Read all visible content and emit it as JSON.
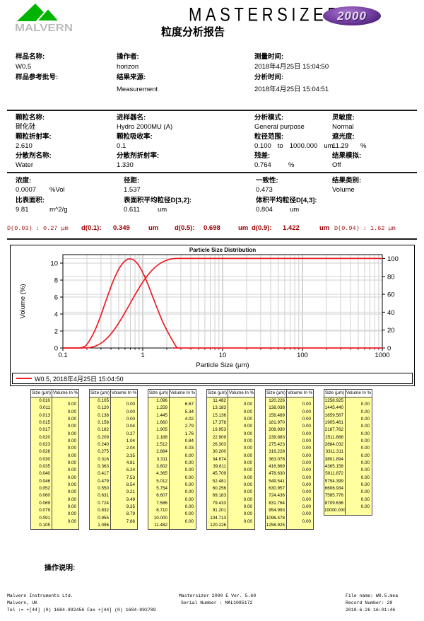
{
  "header": {
    "logo_text": "MALVERN",
    "title": "MASTERSIZER",
    "badge": "2000",
    "subtitle": "粒度分析报告"
  },
  "sample": {
    "name_label": "样品名称:",
    "name": "W0.5",
    "batch_label": "样品参考批号:",
    "batch": "",
    "operator_label": "操作者:",
    "operator": "horizon",
    "source_label": "结果来源:",
    "source": "Measurement",
    "measured_label": "测量时间:",
    "measured": "2018年4月25日 15:04:50",
    "analysed_label": "分析时间:",
    "analysed": "2018年4月25日 15:04:51"
  },
  "particle": {
    "name_label": "颗粒名称:",
    "name": "碳化硅",
    "accessory_label": "进样器名:",
    "accessory": "Hydro 2000MU (A)",
    "analysis_model_label": "分析模式:",
    "analysis_model": "General purpose",
    "sensitivity_label": "灵敏度:",
    "sensitivity": "Normal",
    "ri_label": "颗粒折射率:",
    "ri": "2.610",
    "absorption_label": "颗粒吸收率:",
    "absorption": "0.1",
    "size_range_label": "粒径范围:",
    "size_range_from": "0.100",
    "size_range_word": "to",
    "size_range_to": "1000.000",
    "size_range_unit": "um",
    "obscuration_label": "遮光度:",
    "obscuration": "11.29",
    "obscuration_unit": "%",
    "dispersant_label": "分散剂名称:",
    "dispersant": "Water",
    "dispersant_ri_label": "分散剂折射率:",
    "dispersant_ri": "1.330",
    "residual_label": "残差:",
    "residual": "0.764",
    "residual_unit": "%",
    "emulation_label": "结果模拟:",
    "emulation": "Off"
  },
  "results": {
    "concentration_label": "浓度:",
    "concentration": "0.0007",
    "concentration_unit": "%Vol",
    "span_label": "径距:",
    "span": "1.537",
    "uniformity_label": "一致性:",
    "uniformity": "0.473",
    "result_type_label": "结果类别:",
    "result_type": "Volume",
    "ssa_label": "比表面积:",
    "ssa": "9.81",
    "ssa_unit": "m^2/g",
    "d32_label": "表面积平均粒径D[3,2]:",
    "d32": "0.611",
    "d32_unit": "um",
    "d43_label": "体积平均粒径D[4,3]:",
    "d43": "0.804",
    "d43_unit": "um"
  },
  "dvalues": {
    "d003": "D(0.03) : 0.27 μm",
    "d01_label": "d(0.1):",
    "d01": "0.349",
    "d01_unit": "um",
    "d05_label": "d(0.5):",
    "d05": "0.698",
    "d05_unit": "um",
    "d09_label": "d(0.9):",
    "d09": "1.422",
    "d09_unit": "um",
    "d094": "D(0.94) : 1.62 μm"
  },
  "chart_data": {
    "type": "line",
    "title": "Particle Size Distribution",
    "xlabel": "Particle Size (µm)",
    "ylabel": "Volume (%)",
    "x_scale": "log",
    "xlim": [
      0.1,
      1000
    ],
    "ylim_left": [
      0,
      11
    ],
    "ylim_right": [
      0,
      104.3
    ],
    "x_ticks": [
      0.1,
      1,
      10,
      100,
      1000
    ],
    "y_ticks_left": [
      0,
      2,
      4,
      6,
      8,
      10
    ],
    "y_ticks_right": [
      0,
      20,
      40,
      60,
      80,
      100
    ],
    "grid": true,
    "legend": "W0.5, 2018年4月25日 15:04:50",
    "legend_position": "bottom",
    "line_color": "#ed1c24",
    "series": [
      {
        "name": "volume-frequency",
        "axis": "left",
        "points": [
          [
            0.1,
            0
          ],
          [
            0.158,
            0
          ],
          [
            0.17,
            0.04
          ],
          [
            0.195,
            0.27
          ],
          [
            0.224,
            1.04
          ],
          [
            0.257,
            2.04
          ],
          [
            0.295,
            3.35
          ],
          [
            0.339,
            4.81
          ],
          [
            0.389,
            6.24
          ],
          [
            0.447,
            7.53
          ],
          [
            0.513,
            8.54
          ],
          [
            0.589,
            9.21
          ],
          [
            0.676,
            9.49
          ],
          [
            0.776,
            9.35
          ],
          [
            0.891,
            8.79
          ],
          [
            1.023,
            7.86
          ],
          [
            1.175,
            6.67
          ],
          [
            1.349,
            5.34
          ],
          [
            1.549,
            4.02
          ],
          [
            1.778,
            2.79
          ],
          [
            2.042,
            1.76
          ],
          [
            2.344,
            0.84
          ],
          [
            2.692,
            0.03
          ],
          [
            2.95,
            0
          ],
          [
            4,
            0
          ],
          [
            1000,
            0
          ]
        ]
      },
      {
        "name": "cumulative-volume",
        "axis": "right",
        "points": [
          [
            0.1,
            0
          ],
          [
            0.158,
            0
          ],
          [
            0.182,
            0.04
          ],
          [
            0.209,
            0.31
          ],
          [
            0.24,
            1.35
          ],
          [
            0.275,
            3.39
          ],
          [
            0.316,
            6.74
          ],
          [
            0.363,
            11.55
          ],
          [
            0.417,
            17.79
          ],
          [
            0.479,
            25.32
          ],
          [
            0.55,
            33.86
          ],
          [
            0.631,
            43.07
          ],
          [
            0.724,
            52.56
          ],
          [
            0.832,
            61.91
          ],
          [
            0.955,
            70.7
          ],
          [
            1.096,
            78.56
          ],
          [
            1.259,
            85.23
          ],
          [
            1.445,
            90.57
          ],
          [
            1.66,
            94.59
          ],
          [
            1.905,
            97.38
          ],
          [
            2.188,
            99.14
          ],
          [
            2.512,
            99.98
          ],
          [
            2.884,
            100
          ],
          [
            4,
            100
          ],
          [
            10,
            100
          ],
          [
            1000,
            100
          ]
        ]
      }
    ]
  },
  "table": {
    "headers": [
      "Size (µm)",
      "Volume In %"
    ],
    "groups": [
      {
        "sizes": [
          "0.010",
          "0.011",
          "0.013",
          "0.015",
          "0.017",
          "0.020",
          "0.023",
          "0.026",
          "0.030",
          "0.035",
          "0.040",
          "0.046",
          "0.052",
          "0.060",
          "0.069",
          "0.079",
          "0.091",
          "0.105"
        ],
        "volumes": [
          "0.00",
          "0.00",
          "0.00",
          "0.00",
          "0.00",
          "0.00",
          "0.00",
          "0.00",
          "0.00",
          "0.00",
          "0.00",
          "0.00",
          "0.00",
          "0.00",
          "0.00",
          "0.00",
          "0.00"
        ]
      },
      {
        "sizes": [
          "0.105",
          "0.120",
          "0.138",
          "0.158",
          "0.182",
          "0.209",
          "0.240",
          "0.275",
          "0.316",
          "0.363",
          "0.417",
          "0.479",
          "0.550",
          "0.631",
          "0.724",
          "0.832",
          "0.955",
          "1.096"
        ],
        "volumes": [
          "0.00",
          "0.00",
          "0.00",
          "0.04",
          "0.27",
          "1.04",
          "2.04",
          "3.35",
          "4.81",
          "6.24",
          "7.53",
          "8.54",
          "9.21",
          "9.49",
          "9.35",
          "8.79",
          "7.86"
        ]
      },
      {
        "sizes": [
          "1.096",
          "1.259",
          "1.445",
          "1.660",
          "1.905",
          "2.188",
          "2.512",
          "2.884",
          "3.311",
          "3.802",
          "4.365",
          "5.012",
          "5.754",
          "6.607",
          "7.586",
          "8.710",
          "10.000",
          "11.482"
        ],
        "volumes": [
          "6.67",
          "5.34",
          "4.02",
          "2.79",
          "1.76",
          "0.84",
          "0.03",
          "0.00",
          "0.00",
          "0.00",
          "0.00",
          "0.00",
          "0.00",
          "0.00",
          "0.00",
          "0.00",
          "0.00"
        ]
      },
      {
        "sizes": [
          "11.482",
          "13.183",
          "15.136",
          "17.378",
          "19.953",
          "22.909",
          "26.303",
          "30.200",
          "34.674",
          "39.811",
          "45.709",
          "52.481",
          "60.256",
          "69.183",
          "79.433",
          "91.201",
          "104.713",
          "120.226"
        ],
        "volumes": [
          "0.00",
          "0.00",
          "0.00",
          "0.00",
          "0.00",
          "0.00",
          "0.00",
          "0.00",
          "0.00",
          "0.00",
          "0.00",
          "0.00",
          "0.00",
          "0.00",
          "0.00",
          "0.00",
          "0.00"
        ]
      },
      {
        "sizes": [
          "120.226",
          "138.038",
          "158.489",
          "181.970",
          "208.930",
          "239.883",
          "275.423",
          "316.228",
          "363.078",
          "416.869",
          "478.630",
          "549.541",
          "630.957",
          "724.436",
          "831.764",
          "954.993",
          "1096.478",
          "1258.925"
        ],
        "volumes": [
          "0.00",
          "0.00",
          "0.00",
          "0.00",
          "0.00",
          "0.00",
          "0.00",
          "0.00",
          "0.00",
          "0.00",
          "0.00",
          "0.00",
          "0.00",
          "0.00",
          "0.00",
          "0.00",
          "0.00"
        ]
      },
      {
        "sizes": [
          "1258.925",
          "1445.440",
          "1659.587",
          "1905.461",
          "2187.762",
          "2511.886",
          "2884.032",
          "3311.311",
          "3801.894",
          "4365.158",
          "5011.872",
          "5754.399",
          "6606.934",
          "7585.776",
          "8709.636",
          "10000.000"
        ],
        "volumes": [
          "0.00",
          "0.00",
          "0.00",
          "0.00",
          "0.00",
          "0.00",
          "0.00",
          "0.00",
          "0.00",
          "0.00",
          "0.00",
          "0.00",
          "0.00",
          "0.00",
          "0.00"
        ]
      }
    ]
  },
  "operation_label": "操作说明:",
  "footer": {
    "left": [
      "Malvern Instruments Ltd.",
      "Malvern, UK",
      "Tel := +[44] (0) 1684-892456 Fax +[44] (0) 1684-892789"
    ],
    "center": [
      "Mastersizer 2000 E Ver. 5.60",
      "Serial Number : MAL1085172"
    ],
    "right": [
      "File name: W0.5.mea",
      "Record Number: 28",
      "2018-6-26 16:01:46"
    ]
  },
  "colors": {
    "curve_red": "#ed1c24",
    "dvalue_red": "#990000",
    "table_yellow": "#ffffa0",
    "logo_green": "#00b400",
    "badge_purple": "#5b2d85"
  }
}
